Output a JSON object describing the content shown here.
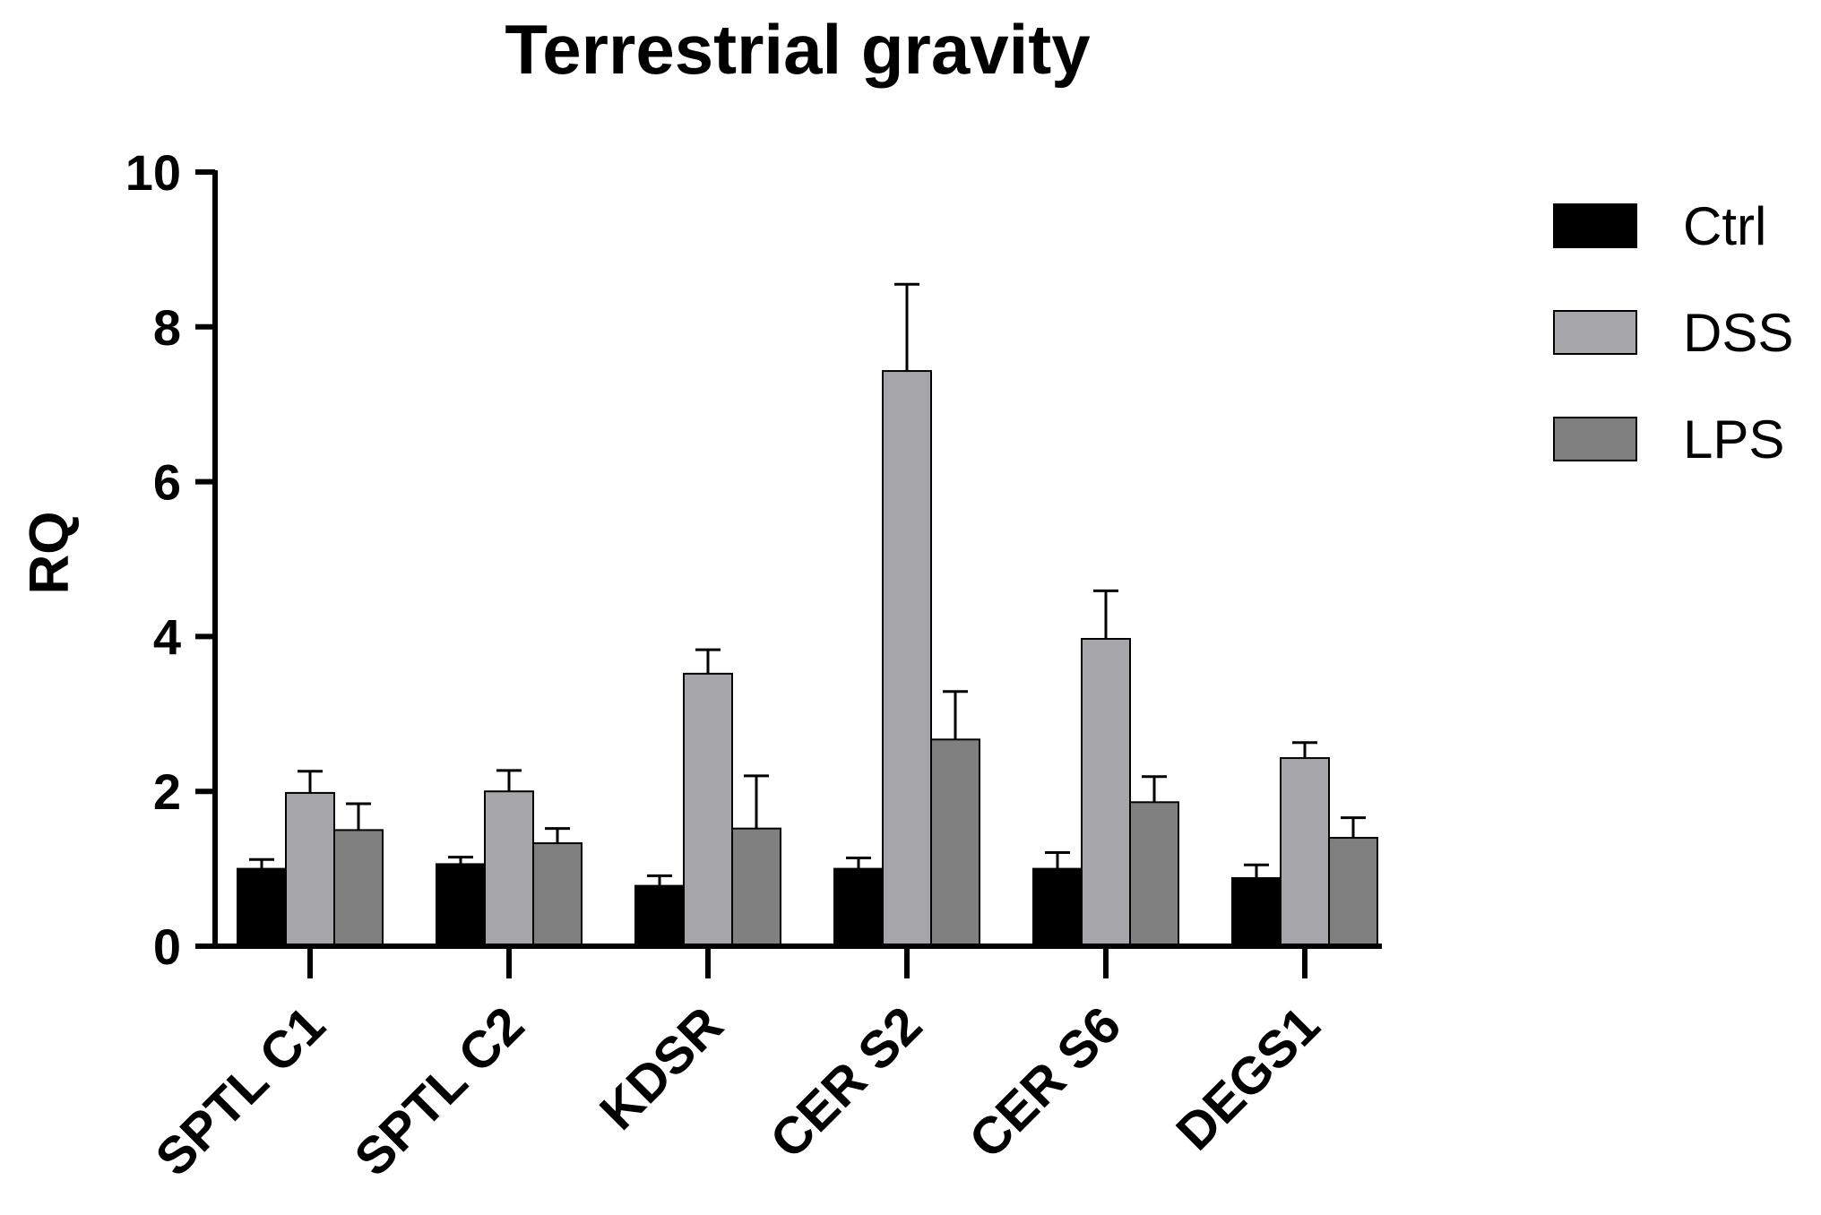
{
  "chart_data": {
    "type": "bar",
    "title": "Terrestrial gravity",
    "xlabel": "",
    "ylabel": "RQ",
    "ylim": [
      0,
      10
    ],
    "yticks": [
      "0",
      "2",
      "4",
      "6",
      "8",
      "10"
    ],
    "categories": [
      "SPTL C1",
      "SPTL C2",
      "KDSR",
      "CER S2",
      "CER S6",
      "DEGS1"
    ],
    "series": [
      {
        "name": "Ctrl",
        "color": "#000000",
        "values": [
          1.0,
          1.06,
          0.78,
          1.0,
          1.0,
          0.88
        ],
        "errors": [
          0.12,
          0.09,
          0.13,
          0.14,
          0.21,
          0.17
        ]
      },
      {
        "name": "DSS",
        "color": "#a6a6aa",
        "values": [
          1.98,
          2.0,
          3.52,
          7.43,
          3.97,
          2.43
        ],
        "errors": [
          0.28,
          0.27,
          0.31,
          1.12,
          0.62,
          0.2
        ]
      },
      {
        "name": "LPS",
        "color": "#808080",
        "values": [
          1.5,
          1.33,
          1.52,
          2.67,
          1.86,
          1.4
        ],
        "errors": [
          0.34,
          0.19,
          0.68,
          0.62,
          0.33,
          0.26
        ]
      }
    ],
    "legend_position": "top-right",
    "grid": false
  }
}
